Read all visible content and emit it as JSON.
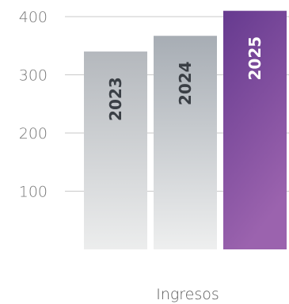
{
  "chart_data": {
    "type": "bar",
    "categories": [
      "2023",
      "2024",
      "2025"
    ],
    "values": [
      340,
      367,
      410
    ],
    "xlabel": "Ingresos",
    "ylabel": "",
    "ylim": [
      0,
      400
    ],
    "yticks": [
      100,
      200,
      300,
      400
    ],
    "grid": true,
    "legend": "none",
    "bar_colors": [
      {
        "top": "#b4b8bd",
        "bottom": "#eceded",
        "label": "#3a3f45"
      },
      {
        "top": "#a7adb4",
        "bottom": "#eeefef",
        "label": "#3a3f45"
      },
      {
        "top": "#663a8f",
        "bottom": "#9b63ae",
        "label": "#ffffff"
      }
    ],
    "gridline_color": "#c9c9c9"
  }
}
